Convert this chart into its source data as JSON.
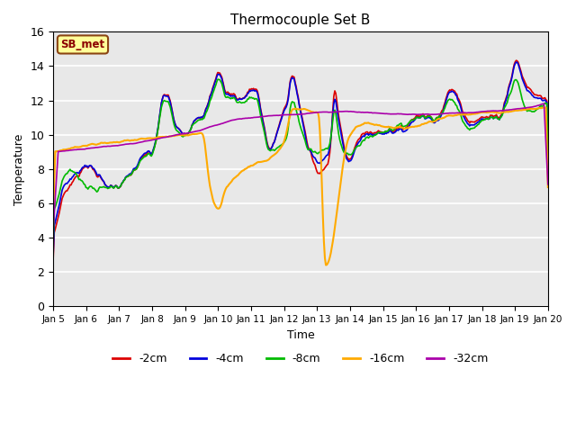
{
  "title": "Thermocouple Set B",
  "xlabel": "Time",
  "ylabel": "Temperature",
  "annotation": "SB_met",
  "ylim": [
    0,
    16
  ],
  "xlim": [
    0,
    15
  ],
  "series_colors": {
    "-2cm": "#dd0000",
    "-4cm": "#0000dd",
    "-8cm": "#00bb00",
    "-16cm": "#ffaa00",
    "-32cm": "#aa00aa"
  },
  "x_tick_labels": [
    "Jan 5",
    "Jan 6",
    "Jan 7",
    "Jan 8",
    "Jan 9",
    "Jan 10",
    "Jan 11",
    "Jan 12",
    "Jan 13",
    "Jan 14",
    "Jan 15",
    "Jan 16",
    "Jan 17",
    "Jan 18",
    "Jan 19",
    "Jan 20"
  ],
  "yticks": [
    0,
    2,
    4,
    6,
    8,
    10,
    12,
    14,
    16
  ],
  "bg_color": "#e8e8e8",
  "grid_color": "#ffffff",
  "annotation_facecolor": "#ffff99",
  "annotation_edgecolor": "#8B4513",
  "annotation_textcolor": "#8B0000"
}
